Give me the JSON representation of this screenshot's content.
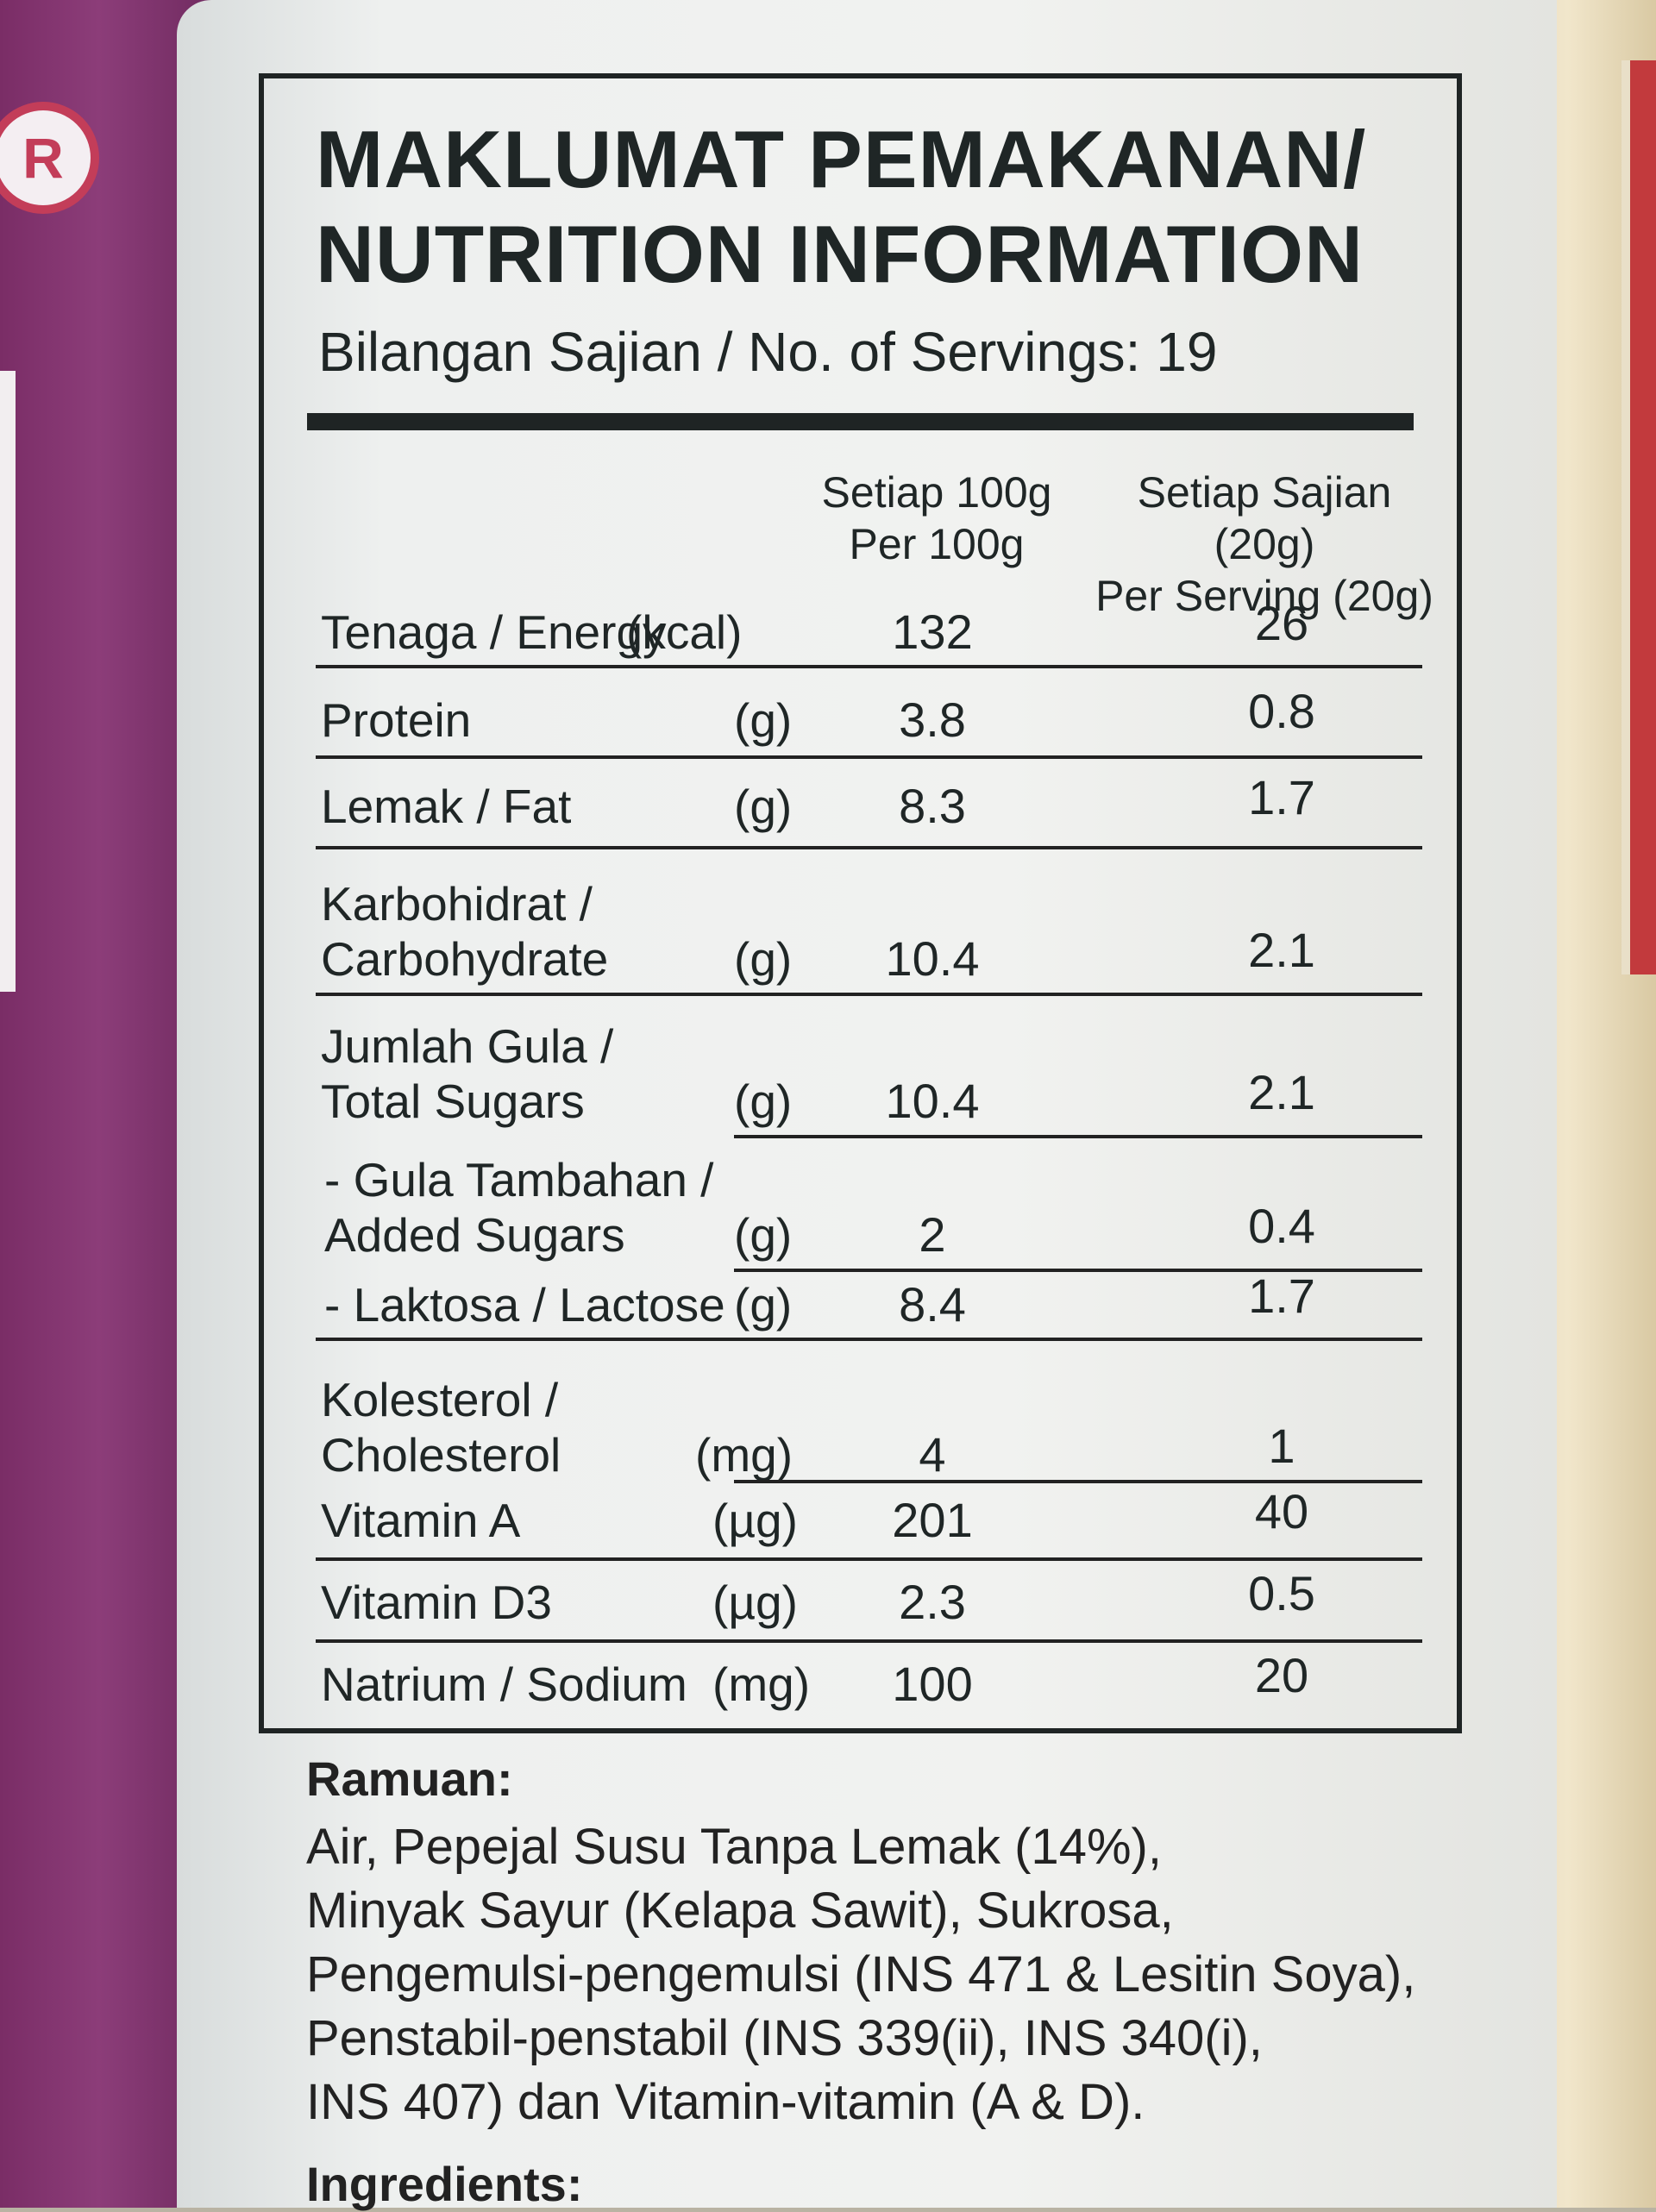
{
  "registered_mark": "R",
  "panel": {
    "title_line1": "MAKLUMAT PEMAKANAN/",
    "title_line2": "NUTRITION INFORMATION",
    "servings": "Bilangan Sajian / No. of Servings: 19",
    "col_per100": "Setiap 100g\nPer 100g",
    "col_serving": "Setiap Sajian (20g)\nPer Serving (20g)",
    "rows": [
      {
        "label": "Tenaga / Energy",
        "unit": "(kcal)",
        "per100": "132",
        "serving": "26"
      },
      {
        "label": "Protein",
        "unit": "(g)",
        "per100": "3.8",
        "serving": "0.8"
      },
      {
        "label": "Lemak / Fat",
        "unit": "(g)",
        "per100": "8.3",
        "serving": "1.7"
      },
      {
        "label": "Karbohidrat /\nCarbohydrate",
        "unit": "(g)",
        "per100": "10.4",
        "serving": "2.1"
      },
      {
        "label": "Jumlah Gula /\nTotal Sugars",
        "unit": "(g)",
        "per100": "10.4",
        "serving": "2.1"
      },
      {
        "label": " - Gula Tambahan /\n   Added Sugars",
        "unit": "(g)",
        "per100": "2",
        "serving": "0.4"
      },
      {
        "label": " - Laktosa / Lactose",
        "unit": "(g)",
        "per100": "8.4",
        "serving": "1.7"
      },
      {
        "label": "Kolesterol /\nCholesterol",
        "unit": "(mg)",
        "per100": "4",
        "serving": "1"
      },
      {
        "label": "Vitamin A",
        "unit": "(µg)",
        "per100": "201",
        "serving": "40"
      },
      {
        "label": "Vitamin D3",
        "unit": "(µg)",
        "per100": "2.3",
        "serving": "0.5"
      },
      {
        "label": "Natrium / Sodium",
        "unit": "(mg)",
        "per100": "100",
        "serving": "20"
      }
    ]
  },
  "ingredients": {
    "title": "Ramuan:",
    "text": "Air, Pepejal Susu Tanpa Lemak (14%),\nMinyak Sayur (Kelapa Sawit), Sukrosa,\nPengemulsi-pengemulsi (INS 471 & Lesitin Soya),\nPenstabil-penstabil (INS 339(ii), INS 340(i),\nINS 407) dan Vitamin-vitamin (A & D).",
    "title2": "Ingredients:"
  }
}
